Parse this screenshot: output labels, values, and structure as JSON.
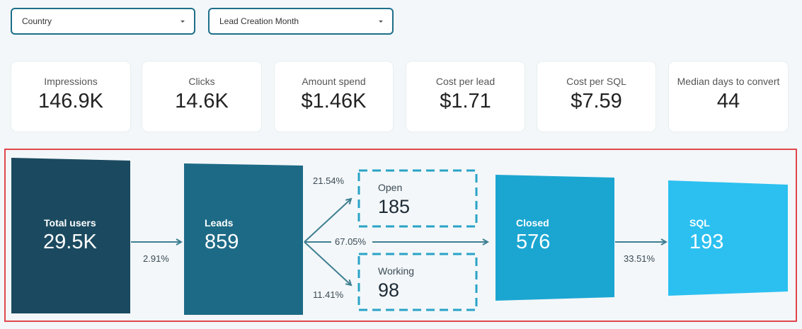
{
  "filters": [
    {
      "label": "Country"
    },
    {
      "label": "Lead Creation Month"
    }
  ],
  "kpis": [
    {
      "label": "Impressions",
      "value": "146.9K"
    },
    {
      "label": "Clicks",
      "value": "14.6K"
    },
    {
      "label": "Amount spend",
      "value": "$1.46K"
    },
    {
      "label": "Cost per lead",
      "value": "$1.71"
    },
    {
      "label": "Cost per SQL",
      "value": "$7.59"
    },
    {
      "label": "Median days to convert",
      "value": "44"
    }
  ],
  "funnel": {
    "stages": [
      {
        "label": "Total users",
        "value": "29.5K",
        "color": "#1b4a60"
      },
      {
        "label": "Leads",
        "value": "859",
        "color": "#1d6a86"
      },
      {
        "label": "Closed",
        "value": "576",
        "color": "#1ba6d1"
      },
      {
        "label": "SQL",
        "value": "193",
        "color": "#2cc0f0"
      }
    ],
    "branches": [
      {
        "label": "Open",
        "value": "185"
      },
      {
        "label": "Working",
        "value": "98"
      }
    ],
    "rates": {
      "users_to_leads": "2.91%",
      "leads_to_open": "21.54%",
      "leads_to_closed": "67.05%",
      "leads_to_working": "11.41%",
      "closed_to_sql": "33.51%"
    },
    "colors": {
      "arrow": "#3f7f92",
      "dashed_border": "#2aa3c7"
    }
  }
}
